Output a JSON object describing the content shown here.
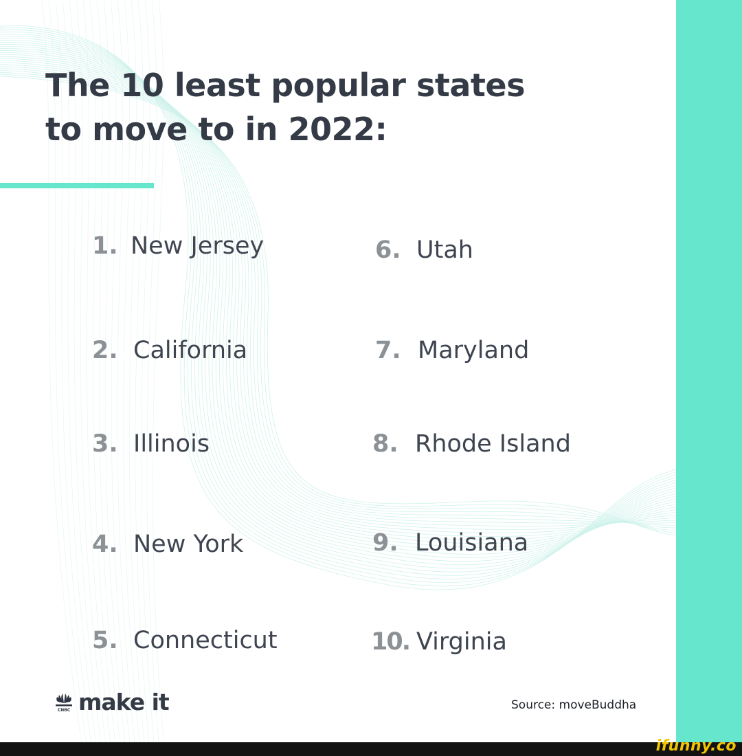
{
  "colors": {
    "accent": "#66e6cc",
    "title": "#343b46",
    "number": "#8c9196",
    "state": "#3f4550",
    "source": "#1e2229",
    "footer": "#121212",
    "watermark": "#f2c400",
    "wave": "#bfeee4"
  },
  "title": {
    "line1": "The 10 least popular states",
    "line2": "to move to in 2022:"
  },
  "items": [
    {
      "number": "1.",
      "state": "New Jersey"
    },
    {
      "number": "2.",
      "state": "California"
    },
    {
      "number": "3.",
      "state": "Illinois"
    },
    {
      "number": "4.",
      "state": "New York"
    },
    {
      "number": "5.",
      "state": "Connecticut"
    },
    {
      "number": "6.",
      "state": "Utah"
    },
    {
      "number": "7.",
      "state": "Maryland"
    },
    {
      "number": "8.",
      "state": "Rhode Island"
    },
    {
      "number": "9.",
      "state": "Louisiana"
    },
    {
      "number": "10.",
      "state": "Virginia"
    }
  ],
  "brand": {
    "logo_icon": "peacock-icon",
    "logo_caption": "CNBC",
    "logo_text": "make it"
  },
  "source": "Source: moveBuddha",
  "watermark": "ifunny.co"
}
